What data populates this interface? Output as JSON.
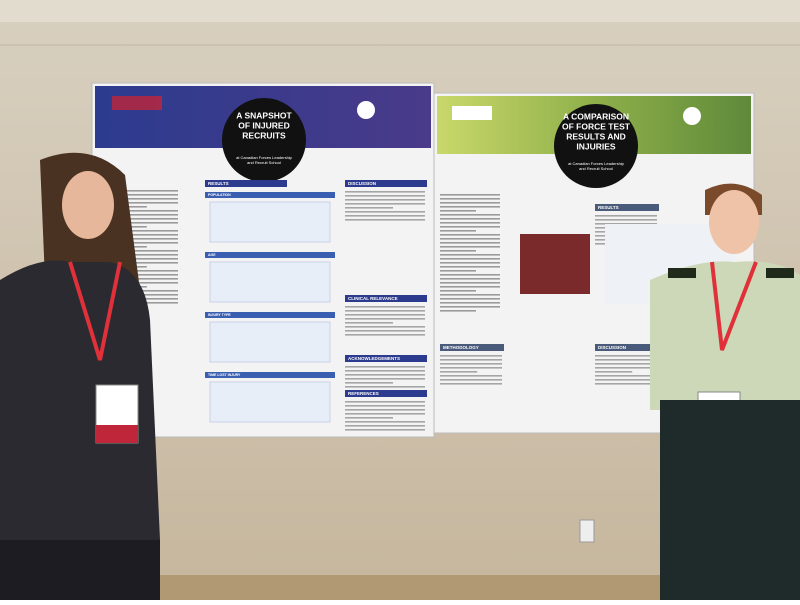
{
  "posters": [
    {
      "title_lines": [
        "A SNAPSHOT",
        "OF INJURED",
        "RECRUITS"
      ],
      "subtitle_lines": [
        "at Canadian Forces Leadership",
        "and Recruit School"
      ],
      "sections": [
        "RESULTS",
        "DISCUSSION",
        "CLINICAL RELEVANCE",
        "ACKNOWLEDGEMENTS",
        "REFERENCES"
      ],
      "subsections": [
        "POPULATION",
        "AGE",
        "INJURY TYPE",
        "TIME LOST INJURY"
      ]
    },
    {
      "title_lines": [
        "A COMPARISON",
        "OF FORCE TEST",
        "RESULTS AND",
        "INJURIES"
      ],
      "subtitle_lines": [
        "at Canadian Forces Leadership",
        "and Recruit School"
      ],
      "sections": [
        "RESULTS",
        "METHODOLOGY",
        "DISCUSSION"
      ]
    }
  ]
}
